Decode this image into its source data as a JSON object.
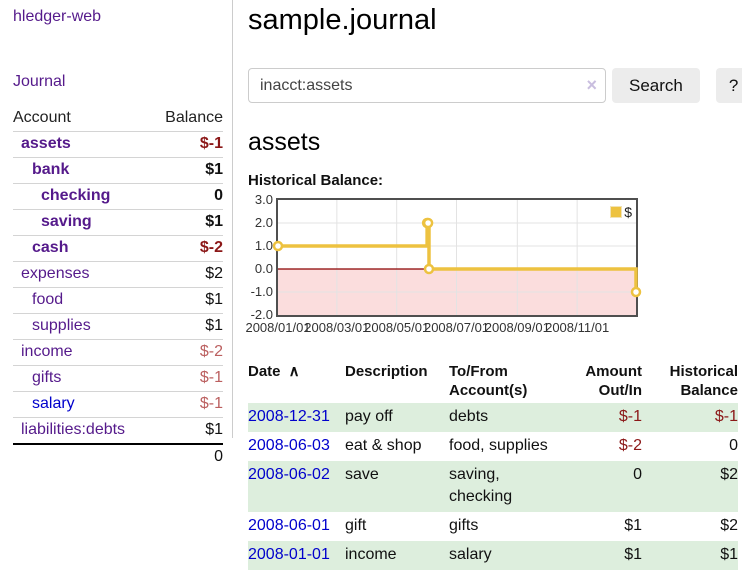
{
  "sidebar": {
    "app_title": "hledger-web",
    "journal_link": "Journal",
    "accounts_table": {
      "account_header": "Account",
      "balance_header": "Balance",
      "rows": [
        {
          "label": "assets",
          "balance": "$-1",
          "indent": 1,
          "bold": true,
          "link": "purple",
          "balance_class": "neg-strong"
        },
        {
          "label": "bank",
          "balance": "$1",
          "indent": 2,
          "bold": true,
          "link": "purple",
          "balance_class": ""
        },
        {
          "label": "checking",
          "balance": "0",
          "indent": 3,
          "bold": true,
          "link": "purple",
          "balance_class": ""
        },
        {
          "label": "saving",
          "balance": "$1",
          "indent": 3,
          "bold": true,
          "link": "purple",
          "balance_class": ""
        },
        {
          "label": "cash",
          "balance": "$-2",
          "indent": 2,
          "bold": true,
          "link": "purple",
          "balance_class": "neg-strong"
        },
        {
          "label": "expenses",
          "balance": "$2",
          "indent": 1,
          "bold": false,
          "link": "purple",
          "balance_class": ""
        },
        {
          "label": "food",
          "balance": "$1",
          "indent": 2,
          "bold": false,
          "link": "purple",
          "balance_class": ""
        },
        {
          "label": "supplies",
          "balance": "$1",
          "indent": 2,
          "bold": false,
          "link": "purple",
          "balance_class": ""
        },
        {
          "label": "income",
          "balance": "$-2",
          "indent": 1,
          "bold": false,
          "link": "purple",
          "balance_class": "neg-soft"
        },
        {
          "label": "gifts",
          "balance": "$-1",
          "indent": 2,
          "bold": false,
          "link": "purple",
          "balance_class": "neg-soft"
        },
        {
          "label": "salary",
          "balance": "$-1",
          "indent": 2,
          "bold": false,
          "link": "blue",
          "balance_class": "neg-soft"
        },
        {
          "label": "liabilities:debts",
          "balance": "$1",
          "indent": 1,
          "bold": false,
          "link": "purple",
          "balance_class": ""
        }
      ],
      "total": "0"
    }
  },
  "header": {
    "title": "sample.journal"
  },
  "search": {
    "value": "inacct:assets",
    "clear_icon": "×",
    "search_button": "Search",
    "help_button": "?"
  },
  "main": {
    "account_heading": "assets"
  },
  "chart_data": {
    "type": "line",
    "step": true,
    "title": "Historical Balance:",
    "legend": "$",
    "x_start": "2008-01-01",
    "x_end": "2008-12-31",
    "series": [
      {
        "name": "$",
        "color": "#edc240",
        "points": [
          [
            "2008-01-01",
            1
          ],
          [
            "2008-06-01",
            2
          ],
          [
            "2008-06-02",
            2
          ],
          [
            "2008-06-03",
            0
          ],
          [
            "2008-12-31",
            -1
          ]
        ]
      }
    ],
    "ylim": [
      -2,
      3
    ],
    "yticks": [
      3.0,
      2.0,
      1.0,
      0.0,
      -1.0,
      -2.0
    ],
    "xticks": [
      "2008/01/01",
      "2008/03/01",
      "2008/05/01",
      "2008/07/01",
      "2008/09/01",
      "2008/11/01"
    ],
    "grid": true,
    "legend_position": "top-right",
    "negative_region_color": "#fbdddd",
    "zero_line_color": "#8b0000",
    "grid_color": "#e3e3e3"
  },
  "register_table": {
    "sort_icon": "∧",
    "headers": [
      {
        "label": "Date",
        "align": "left",
        "has_sort": true
      },
      {
        "label": "Description",
        "align": "left"
      },
      {
        "label": "To/From Account(s)",
        "align": "left"
      },
      {
        "label": "Amount Out/In",
        "align": "right"
      },
      {
        "label": "Historical Balance",
        "align": "right"
      }
    ],
    "rows": [
      {
        "date": "2008-12-31",
        "description": "pay off",
        "accounts": "debts",
        "amount": "$-1",
        "balance": "$-1",
        "amount_negative": true,
        "balance_negative": true
      },
      {
        "date": "2008-06-03",
        "description": "eat & shop",
        "accounts": "food, supplies",
        "amount": "$-2",
        "balance": "0",
        "amount_negative": true,
        "balance_negative": false
      },
      {
        "date": "2008-06-02",
        "description": "save",
        "accounts": "saving, checking",
        "amount": "0",
        "balance": "$2",
        "amount_negative": false,
        "balance_negative": false
      },
      {
        "date": "2008-06-01",
        "description": "gift",
        "accounts": "gifts",
        "amount": "$1",
        "balance": "$2",
        "amount_negative": false,
        "balance_negative": false
      },
      {
        "date": "2008-01-01",
        "description": "income",
        "accounts": "salary",
        "amount": "$1",
        "balance": "$1",
        "amount_negative": false,
        "balance_negative": false
      }
    ]
  },
  "colors": {
    "visited_link_purple": "#551a8b",
    "link_blue": "#0000cc",
    "negative_strong": "#8b1717",
    "negative_soft": "#bb5f5f",
    "row_highlight_green": "#ddeedd",
    "series_gold": "#edc240"
  }
}
